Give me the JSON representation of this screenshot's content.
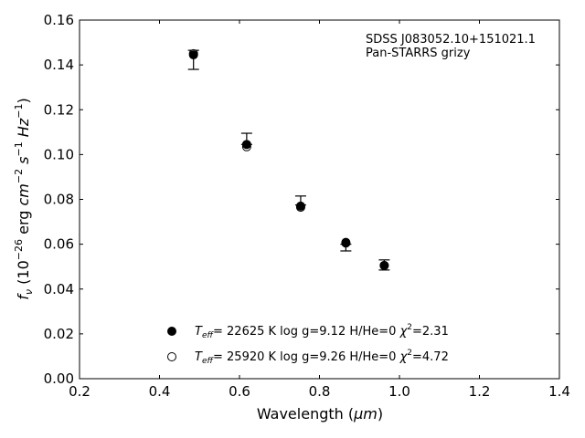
{
  "chart_data": {
    "type": "scatter",
    "xlim": [
      0.2,
      1.4
    ],
    "ylim": [
      0.0,
      0.16
    ],
    "x_ticks": [
      "0.2",
      "0.4",
      "0.6",
      "0.8",
      "1.0",
      "1.2",
      "1.4"
    ],
    "y_ticks": [
      "0.00",
      "0.02",
      "0.04",
      "0.06",
      "0.08",
      "0.10",
      "0.12",
      "0.14",
      "0.16"
    ],
    "xlabel_text": "Wavelength (",
    "xlabel_unit": "μm",
    "xlabel_close": ")",
    "ylabel_text": "(10",
    "ylabel_sym": "f",
    "ylabel_sub": "ν",
    "ylabel_exp": "−26",
    "ylabel_erg": " erg ",
    "ylabel_cm": "cm",
    "ylabel_cm_exp": "−2",
    "ylabel_s": " s",
    "ylabel_s_exp": "−1",
    "ylabel_hz": " Hz",
    "ylabel_hz_exp": "−1",
    "ylabel_end": ")",
    "annotation_line1": "SDSS J083052.10+151021.1",
    "annotation_line2": "Pan-STARRS grizy",
    "grid": false,
    "observed": {
      "x": [
        0.485,
        0.618,
        0.753,
        0.866,
        0.962
      ],
      "y": [
        0.1425,
        0.1045,
        0.0775,
        0.06,
        0.0505
      ],
      "yerr_upper": [
        0.1465,
        0.1095,
        0.0815,
        0.06,
        0.053
      ],
      "yerr_lower": [
        0.138,
        0.1045,
        0.0775,
        0.057,
        0.0485
      ]
    },
    "series": [
      {
        "marker": "filled",
        "legend": {
          "T": "T",
          "sub": "eff",
          "rest": "= 22625 K  log g=9.12  H/He=0  ",
          "chi": "χ",
          "chi_exp": "2",
          "chi_val": "=2.31"
        },
        "x": [
          0.485,
          0.618,
          0.753,
          0.866,
          0.962
        ],
        "y": [
          0.1445,
          0.1045,
          0.077,
          0.0608,
          0.0505
        ]
      },
      {
        "marker": "open",
        "legend": {
          "T": "T",
          "sub": "eff",
          "rest": "= 25920 K  log g=9.26  H/He=0  ",
          "chi": "χ",
          "chi_exp": "2",
          "chi_val": "=4.72"
        },
        "x": [
          0.485,
          0.618,
          0.753,
          0.866,
          0.962
        ],
        "y": [
          0.145,
          0.1035,
          0.0765,
          0.0605,
          0.0505
        ]
      }
    ]
  }
}
